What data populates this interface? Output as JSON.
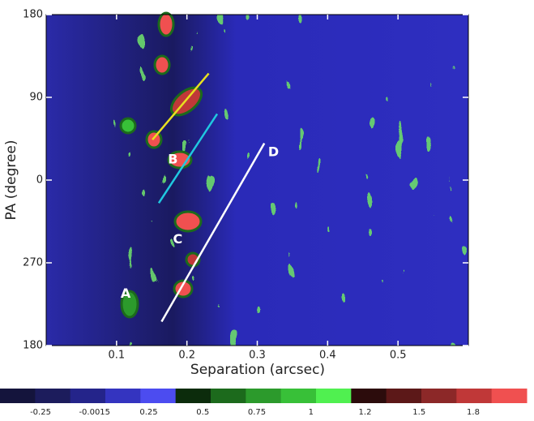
{
  "chart_data": {
    "type": "heatmap",
    "xlabel": "Separation (arcsec)",
    "ylabel": "PA (degree)",
    "xlim": [
      0,
      0.6
    ],
    "xticks": [
      0.1,
      0.2,
      0.3,
      0.4,
      0.5
    ],
    "ylim": [
      -180,
      180
    ],
    "yticks": [
      180,
      90,
      0,
      {
        "value": -90,
        "label": "270"
      },
      {
        "value": -180,
        "label": "180"
      }
    ],
    "lines": [
      {
        "color": "#e8e020",
        "x": [
          0.151,
          0.231
        ],
        "y": [
          44,
          116
        ]
      },
      {
        "color": "#20c8e0",
        "x": [
          0.16,
          0.243
        ],
        "y": [
          -25,
          72
        ]
      },
      {
        "color": "#ffffff",
        "x": [
          0.164,
          0.31
        ],
        "y": [
          -154,
          40
        ]
      }
    ],
    "annotations": [
      {
        "text": "A",
        "x": 0.113,
        "y": -124
      },
      {
        "text": "B",
        "x": 0.18,
        "y": 22
      },
      {
        "text": "C",
        "x": 0.187,
        "y": -65
      },
      {
        "text": "D",
        "x": 0.323,
        "y": 30
      }
    ],
    "colorbar": {
      "colors": [
        "#14143c",
        "#1c1c5c",
        "#24248a",
        "#3434c0",
        "#4c4cf0",
        "#0c2c0c",
        "#1c6a1c",
        "#2c9a2c",
        "#38c038",
        "#50f050",
        "#2c0c0c",
        "#5c1818",
        "#8c2828",
        "#c03838",
        "#f05050"
      ],
      "ticks": [
        -0.25,
        -0.0015,
        0.25,
        0.5,
        0.75,
        1,
        1.2,
        1.5,
        1.8
      ]
    }
  }
}
